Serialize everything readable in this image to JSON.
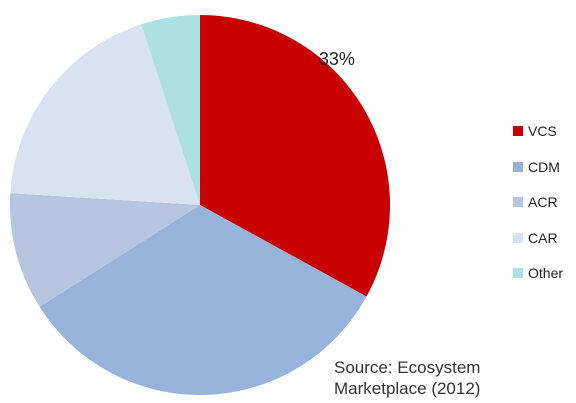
{
  "chart_data": {
    "type": "pie",
    "categories": [
      "VCS",
      "CDM",
      "ACR",
      "CAR",
      "Other"
    ],
    "values": [
      33,
      33,
      10,
      19,
      5
    ],
    "colors": [
      "#c80000",
      "#98b3d9",
      "#b6c6e1",
      "#d9e2f1",
      "#ace0e3"
    ],
    "data_labels": [
      {
        "category": "VCS",
        "text": "33%"
      }
    ],
    "start_angle_deg": 0,
    "direction": "clockwise",
    "legend_position": "right"
  },
  "source_note": {
    "line1": "Source: Ecosystem",
    "line2": "Marketplace (2012)"
  }
}
